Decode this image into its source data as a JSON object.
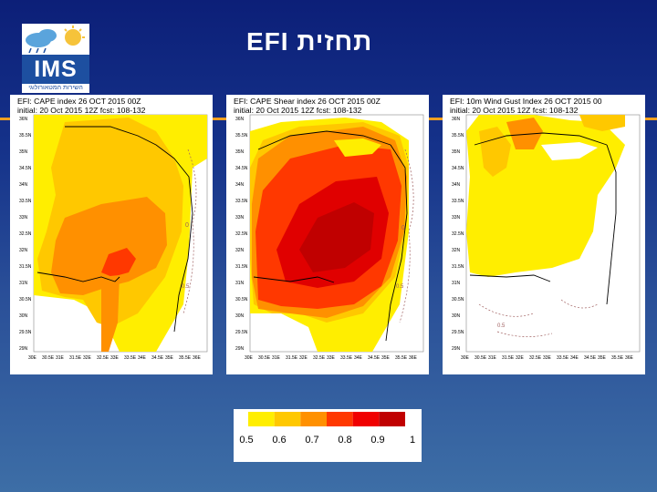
{
  "header": {
    "title": "EFI תחזית",
    "logo_text": "IMS",
    "logo_subtitle": "השירות המטאורולוגי"
  },
  "panels": [
    {
      "line1": "EFI: CAPE index 26 OCT 2015 00Z",
      "line2": "initial: 20 Oct 2015 12Z fcst: 108-132"
    },
    {
      "line1": "EFI: CAPE Shear index 26 OCT 2015 00Z",
      "line2": "initial: 20 Oct 2015 12Z fcst: 108-132"
    },
    {
      "line1": "EFI: 10m Wind Gust Index 26 OCT 2015 00",
      "line2": "initial: 20 Oct 2015 12Z fcst: 108-132"
    }
  ],
  "map_axis": {
    "lat_labels": [
      "36N",
      "35.5N",
      "35N",
      "34.5N",
      "34N",
      "33.5N",
      "33N",
      "32.5N",
      "32N",
      "31.5N",
      "31N",
      "30.5N",
      "30N",
      "29.5N",
      "29N"
    ],
    "lon_labels": [
      "30E",
      "30.5E",
      "31E",
      "31.5E",
      "32E",
      "32.5E",
      "33E",
      "33.5E",
      "34E",
      "34.5E",
      "35E",
      "35.5E",
      "36E"
    ],
    "contour_labels": [
      "0",
      "0.5"
    ]
  },
  "legend": {
    "labels": [
      "0.5",
      "0.6",
      "0.7",
      "0.8",
      "0.9",
      "1"
    ],
    "colors": [
      "#ffee00",
      "#ffc800",
      "#ff9000",
      "#ff3800",
      "#f00000",
      "#c00000"
    ]
  }
}
